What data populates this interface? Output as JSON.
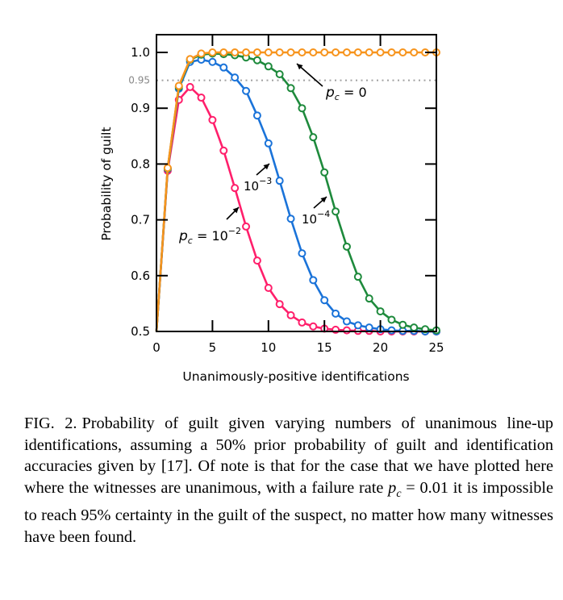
{
  "chart_data": {
    "type": "line",
    "title": "",
    "xlabel": "Unanimously-positive identifications",
    "ylabel": "Probability of guilt",
    "xlim": [
      0,
      25
    ],
    "ylim": [
      0.5,
      1.03
    ],
    "xticks": [
      0,
      5,
      10,
      15,
      20,
      25
    ],
    "xtick_labels": [
      "0",
      "5",
      "10",
      "15",
      "20",
      "25"
    ],
    "yticks": [
      0.5,
      0.6,
      0.7,
      0.8,
      0.9,
      1.0
    ],
    "ytick_labels": [
      "0.5",
      "0.6",
      "0.7",
      "0.8",
      "0.9",
      "1.0"
    ],
    "reference_line": {
      "y": 0.95,
      "label": "0.95",
      "style": "dotted",
      "color": "#a0a0a0"
    },
    "grid": false,
    "marker": "open-circle",
    "x": [
      0,
      1,
      2,
      3,
      4,
      5,
      6,
      7,
      8,
      9,
      10,
      11,
      12,
      13,
      14,
      15,
      16,
      17,
      18,
      19,
      20,
      21,
      22,
      23,
      24,
      25
    ],
    "series": [
      {
        "name": "pc = 10^-2",
        "color": "#ff1f6b",
        "values": [
          0.5,
          0.788,
          0.915,
          0.938,
          0.919,
          0.879,
          0.824,
          0.757,
          0.688,
          0.627,
          0.578,
          0.549,
          0.529,
          0.516,
          0.509,
          0.505,
          0.503,
          0.502,
          0.501,
          0.501,
          0.5,
          0.5,
          0.5,
          0.5,
          0.5,
          0.5
        ]
      },
      {
        "name": "pc = 10^-3",
        "color": "#1a73d9",
        "values": [
          0.5,
          0.791,
          0.935,
          0.983,
          0.987,
          0.983,
          0.973,
          0.955,
          0.931,
          0.887,
          0.837,
          0.77,
          0.702,
          0.64,
          0.592,
          0.556,
          0.532,
          0.518,
          0.511,
          0.507,
          0.504,
          0.502,
          0.501,
          0.501,
          0.5,
          0.5
        ]
      },
      {
        "name": "pc = 10^-4",
        "color": "#1e8a3c",
        "values": [
          0.5,
          0.792,
          0.938,
          0.987,
          0.996,
          0.998,
          0.997,
          0.995,
          0.991,
          0.986,
          0.975,
          0.961,
          0.936,
          0.9,
          0.848,
          0.785,
          0.715,
          0.652,
          0.598,
          0.559,
          0.536,
          0.521,
          0.512,
          0.507,
          0.504,
          0.502
        ]
      },
      {
        "name": "pc = 0",
        "color": "#f7941d",
        "values": [
          0.5,
          0.793,
          0.94,
          0.988,
          0.998,
          1.0,
          1.0,
          1.0,
          1.0,
          1.0,
          1.0,
          1.0,
          1.0,
          1.0,
          1.0,
          1.0,
          1.0,
          1.0,
          1.0,
          1.0,
          1.0,
          1.0,
          1.0,
          1.0,
          1.0,
          1.0
        ]
      }
    ],
    "annotations": [
      {
        "series": "pc = 0",
        "prefix": "p",
        "sub": "c",
        "text": " = 0",
        "sup": ""
      },
      {
        "series": "pc = 10^-3",
        "prefix": "",
        "sub": "",
        "text": "10",
        "sup": "−3"
      },
      {
        "series": "pc = 10^-4",
        "prefix": "",
        "sub": "",
        "text": "10",
        "sup": "−4"
      },
      {
        "series": "pc = 10^-2",
        "prefix": "p",
        "sub": "c",
        "text": " = 10",
        "sup": "−2"
      }
    ]
  },
  "caption": {
    "label": "FIG. 2.",
    "text_1": "Probability of guilt given varying numbers of unanimous line-up identifications, assuming a 50% prior probability of guilt and identification accuracies given by [17]. Of note is that for the case that we have plotted here where the witnesses are unanimous, with a failure rate ",
    "math_var": "p",
    "math_sub": "c",
    "math_eq": " = 0.01",
    "text_2": " it is impossible to reach 95% certainty in the guilt of the suspect, no matter how many witnesses have been found."
  }
}
